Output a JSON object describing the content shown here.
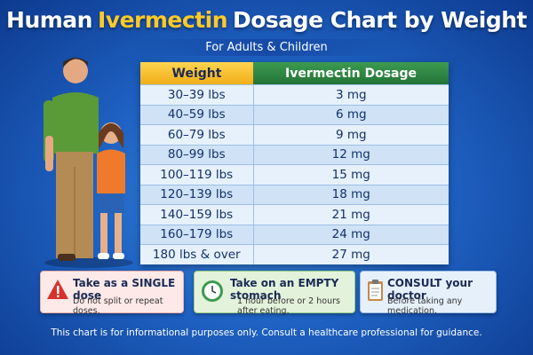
{
  "header": {
    "title_parts": [
      "Human",
      "Ivermectin",
      "Dosage Chart by Weight"
    ],
    "subtitle": "For Adults & Children"
  },
  "table": {
    "columns": [
      "Weight",
      "Ivermectin Dosage"
    ],
    "rows": [
      [
        "30–39 lbs",
        "3 mg"
      ],
      [
        "40–59 lbs",
        "6 mg"
      ],
      [
        "60–79 lbs",
        "9 mg"
      ],
      [
        "80–99 lbs",
        "12 mg"
      ],
      [
        "100–119 lbs",
        "15 mg"
      ],
      [
        "120–139 lbs",
        "18 mg"
      ],
      [
        "140–159 lbs",
        "21 mg"
      ],
      [
        "160–179 lbs",
        "24 mg"
      ],
      [
        "180 lbs & over",
        "27 mg"
      ]
    ]
  },
  "notes": [
    {
      "title": "Take as a SINGLE dose",
      "text": "Do not split or repeat doses."
    },
    {
      "title": "Take on an EMPTY stomach",
      "text": "1 hour before or 2 hours after eating."
    },
    {
      "title": "CONSULT your doctor",
      "text": "Before taking any medication."
    }
  ],
  "footer": "This chart is for informational purposes only. Consult a healthcare professional for guidance."
}
